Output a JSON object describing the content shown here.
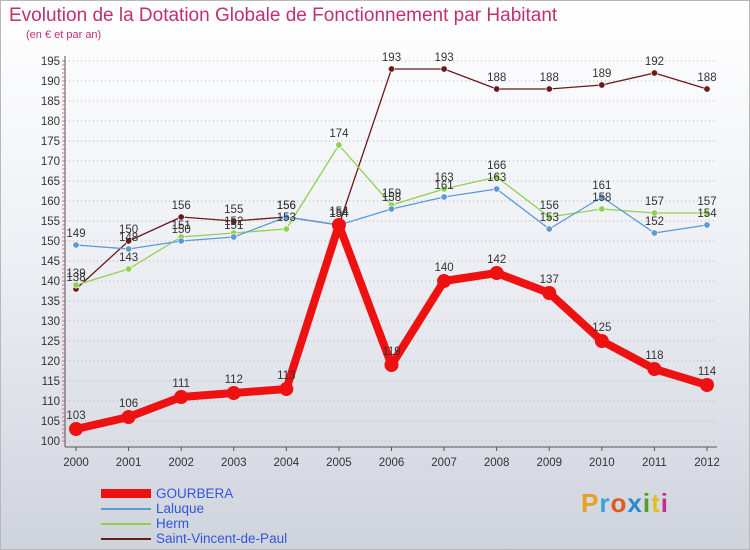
{
  "header": {
    "title": "Evolution de la Dotation Globale de Fonctionnement par Habitant",
    "subtitle": "(en € et par an)"
  },
  "logo": {
    "text": "Proxiti",
    "colors": [
      "#e8a020",
      "#3da0d8",
      "#e05a20",
      "#2a8ad0",
      "#50a020",
      "#e0c020",
      "#c03090"
    ]
  },
  "colors": {
    "title": "#c0306f",
    "grid": "#b0b0b0",
    "axis": "#333333"
  },
  "chart_data": {
    "type": "line",
    "title": "Evolution de la Dotation Globale de Fonctionnement par Habitant",
    "subtitle": "(en € et par an)",
    "xlabel": "",
    "ylabel": "",
    "x": [
      "2000",
      "2001",
      "2002",
      "2003",
      "2004",
      "2005",
      "2006",
      "2007",
      "2008",
      "2009",
      "2010",
      "2011",
      "2012"
    ],
    "ylim": [
      100,
      195
    ],
    "yticks": [
      100,
      105,
      110,
      115,
      120,
      125,
      130,
      135,
      140,
      145,
      150,
      155,
      160,
      165,
      170,
      175,
      180,
      185,
      190,
      195
    ],
    "grid": "horizontal dashed",
    "legend_position": "bottom-left",
    "series": [
      {
        "name": "GOURBERA",
        "color": "#ee1111",
        "legend_text_color": "#3355dd",
        "thick": true,
        "values": [
          103,
          106,
          111,
          112,
          113,
          154,
          119,
          140,
          142,
          137,
          125,
          118,
          114
        ]
      },
      {
        "name": "Laluque",
        "color": "#5b9bd5",
        "legend_text_color": "#3355dd",
        "thick": false,
        "values": [
          149,
          148,
          150,
          151,
          156,
          154,
          158,
          161,
          163,
          153,
          161,
          152,
          154
        ]
      },
      {
        "name": "Herm",
        "color": "#8fd14f",
        "legend_text_color": "#3355dd",
        "thick": false,
        "values": [
          139,
          143,
          151,
          152,
          153,
          174,
          159,
          163,
          166,
          156,
          158,
          157,
          157
        ]
      },
      {
        "name": "Saint-Vincent-de-Paul",
        "color": "#6b1a1a",
        "legend_text_color": "#3355dd",
        "thick": false,
        "values": [
          138,
          150,
          156,
          155,
          156,
          154,
          193,
          193,
          188,
          188,
          189,
          192,
          188
        ]
      }
    ]
  }
}
